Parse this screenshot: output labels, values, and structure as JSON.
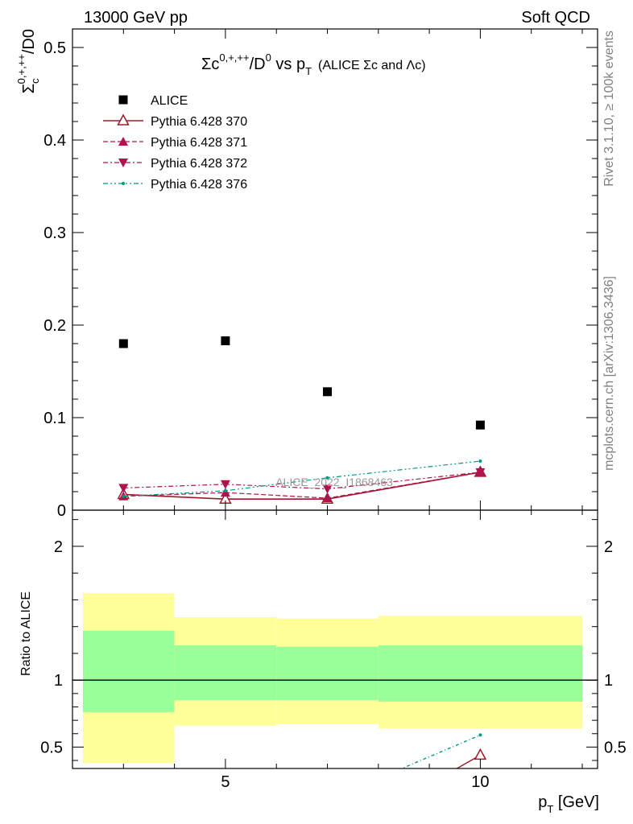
{
  "header": {
    "energy_label": "13000 GeV pp",
    "category_label": "Soft QCD",
    "side_label_top": "Rivet 3.1.10, ≥ 100k events",
    "side_label_bottom": "mcplots.cern.ch [arXiv:1306.3436]"
  },
  "chart_data": [
    {
      "type": "scatter",
      "title": "Σc0,+,++/D0 vs pT (ALICE Σc and Λc)",
      "title_parts": {
        "main": "Σc",
        "sup1": "0,+,++",
        "mid": "/D",
        "sup2": "0",
        "vs": " vs p",
        "sub": "T",
        "extra": "(ALICE Σc and Λc)"
      },
      "ylabel": "Σc0,+,++/D0",
      "ylabel_parts": {
        "main": "Σ",
        "sub": "c",
        "sup": "0,+,++",
        "tail": "/D0"
      },
      "xlim": [
        2,
        12.3
      ],
      "ylim": [
        0,
        0.52
      ],
      "yticks": [
        0,
        0.1,
        0.2,
        0.3,
        0.4,
        0.5
      ],
      "ytick_labels": [
        "0",
        "0.1",
        "0.2",
        "0.3",
        "0.4",
        "0.5"
      ],
      "watermark": "ALICE_2022_I1868463",
      "legend_position": "top-left",
      "series": [
        {
          "name": "ALICE",
          "color": "#000000",
          "marker": "square",
          "line": "none",
          "x": [
            3,
            5,
            7,
            10
          ],
          "y": [
            0.18,
            0.183,
            0.128,
            0.092
          ]
        },
        {
          "name": "Pythia 6.428 370",
          "color": "#a0182a",
          "marker": "open-triangle-up",
          "line": "solid",
          "x": [
            3,
            5,
            7,
            10
          ],
          "y": [
            0.017,
            0.012,
            0.012,
            0.041
          ]
        },
        {
          "name": "Pythia 6.428 371",
          "color": "#b0124e",
          "marker": "triangle-up",
          "line": "dashed",
          "x": [
            3,
            5,
            7,
            10
          ],
          "y": [
            0.015,
            0.019,
            0.013,
            0.041
          ]
        },
        {
          "name": "Pythia 6.428 372",
          "color": "#b0124e",
          "marker": "triangle-down",
          "line": "dashdot",
          "x": [
            3,
            5,
            7,
            10
          ],
          "y": [
            0.024,
            0.028,
            0.023,
            0.041
          ]
        },
        {
          "name": "Pythia 6.428 376",
          "color": "#009a80",
          "marker": "dot",
          "line": "dashdotdot",
          "x": [
            3,
            5,
            7,
            10
          ],
          "y": [
            0.015,
            0.021,
            0.035,
            0.053
          ]
        }
      ]
    },
    {
      "type": "line",
      "ylabel": "Ratio to ALICE",
      "xlabel": "pT [GeV]",
      "xlabel_parts": {
        "main": "p",
        "sub": "T",
        "tail": " [GeV]"
      },
      "xlim": [
        2,
        12.3
      ],
      "ylim": [
        0.34,
        2.27
      ],
      "xticks": [
        5,
        10
      ],
      "xtick_labels": [
        "5",
        "10"
      ],
      "yticks": [
        0.5,
        1,
        2
      ],
      "ytick_labels": [
        "0.5",
        "1",
        "2"
      ],
      "bands": {
        "bins": [
          [
            2,
            4
          ],
          [
            4,
            6
          ],
          [
            6,
            8
          ],
          [
            8,
            12
          ]
        ],
        "outer_low": [
          0.38,
          0.66,
          0.67,
          0.64
        ],
        "outer_high": [
          1.65,
          1.47,
          1.46,
          1.48
        ],
        "inner_low": [
          0.76,
          0.85,
          0.85,
          0.84
        ],
        "inner_high": [
          1.37,
          1.26,
          1.25,
          1.26
        ],
        "outer_color": "#ffff99",
        "inner_color": "#99ff99"
      },
      "series": [
        {
          "name": "Pythia 6.428 370",
          "color": "#a0182a",
          "x": [
            8.9,
            10
          ],
          "y": [
            0.2,
            0.44
          ]
        },
        {
          "name": "Pythia 6.428 376",
          "color": "#009a80",
          "x": [
            8.4,
            10
          ],
          "y": [
            0.33,
            0.59
          ]
        }
      ]
    }
  ]
}
